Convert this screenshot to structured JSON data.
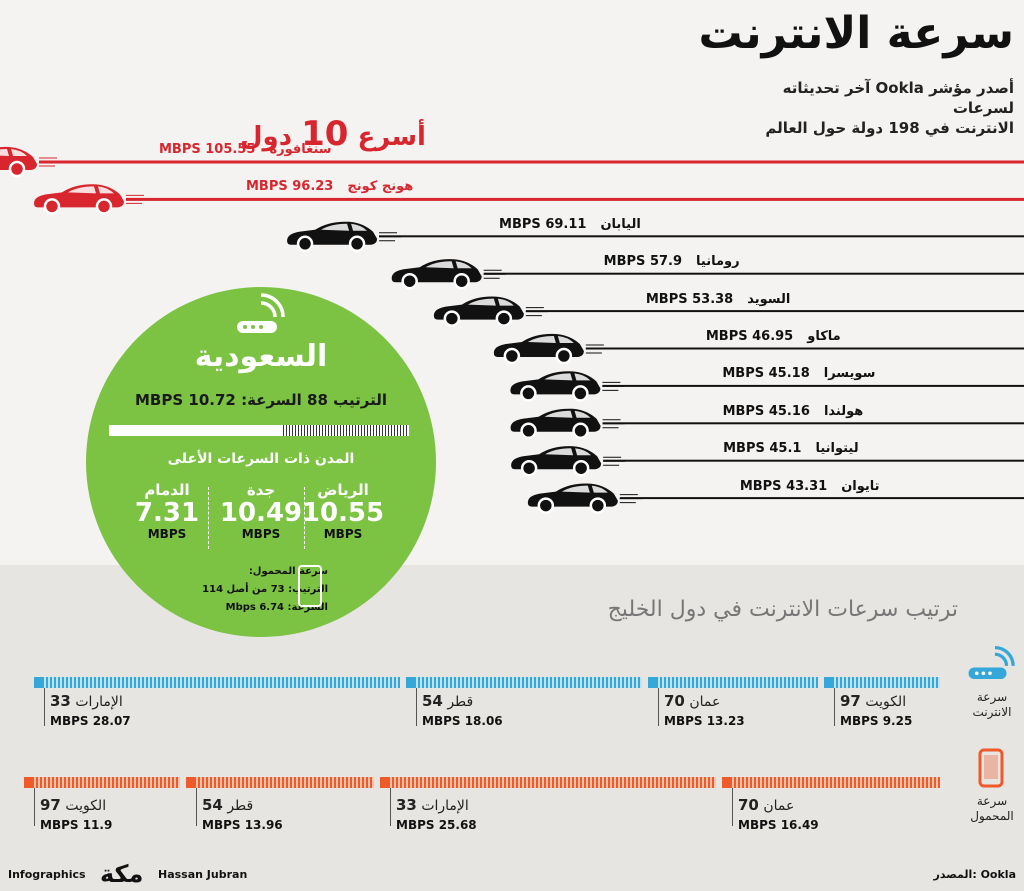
{
  "header": {
    "title": "سرعة الانترنت",
    "subtitle_line1": "أصدر مؤشر Ookla آخر تحديثاته لسرعات",
    "subtitle_line2": "الانترنت في 198 دولة حول العالم",
    "top10_prefix": "أسرع",
    "top10_number": "10",
    "top10_suffix": "دول"
  },
  "colors": {
    "red": "#d7262e",
    "dark": "#111111",
    "green": "#7cc243",
    "blue": "#36a7d9",
    "orange": "#ee5a2a"
  },
  "unit": "MBPS",
  "chart_data": [
    {
      "type": "bar",
      "title": "أسرع 10 دول",
      "categories": [
        "سنغافورة",
        "هونج كونج",
        "اليابان",
        "رومانيا",
        "السويد",
        "ماكاو",
        "سويسرا",
        "هولندا",
        "ليتوانيا",
        "تايوان"
      ],
      "values": [
        105.55,
        96.23,
        69.11,
        57.9,
        53.38,
        46.95,
        45.18,
        45.16,
        45.1,
        43.31
      ],
      "unit": "MBPS"
    },
    {
      "type": "bar",
      "title": "ترتيب سرعات الانترنت في دول الخليج",
      "series": [
        {
          "name": "سرعة الانترنت",
          "categories": [
            "الكويت",
            "عمان",
            "قطر",
            "الإمارات"
          ],
          "ranks": [
            97,
            70,
            54,
            33
          ],
          "values": [
            9.25,
            13.23,
            18.06,
            28.07
          ]
        },
        {
          "name": "سرعة المحمول",
          "categories": [
            "عمان",
            "الإمارات",
            "قطر",
            "الكويت"
          ],
          "ranks": [
            70,
            33,
            54,
            97
          ],
          "values": [
            16.49,
            25.68,
            13.96,
            11.9
          ]
        }
      ]
    }
  ],
  "saudi": {
    "country": "السعودية",
    "rank_label": "الترتيب",
    "rank": "88",
    "speed_label": "السرعة:",
    "speed": "10.72",
    "unit": "MBPS",
    "rank_fraction": 0.58,
    "cities_title": "المدن ذات السرعات الأعلى",
    "cities": [
      {
        "name": "الرياض",
        "value": "10.55"
      },
      {
        "name": "جدة",
        "value": "10.49"
      },
      {
        "name": "الدمام",
        "value": "7.31"
      }
    ],
    "mobile_title": "سرعة المحمول:",
    "mobile_rank": "الترتيب: 73 من أصل 114",
    "mobile_speed": "السرعة: 6.74 Mbps"
  },
  "gulf": {
    "title": "ترتيب سرعات الانترنت في دول الخليج",
    "legend_internet": [
      "سرعة",
      "الانترنت"
    ],
    "legend_mobile": [
      "سرعة",
      "المحمول"
    ]
  },
  "footer": {
    "left": "Infographics",
    "logo": "مكة",
    "author": "Hassan Jubran",
    "source": "المصدر: Ookla"
  }
}
